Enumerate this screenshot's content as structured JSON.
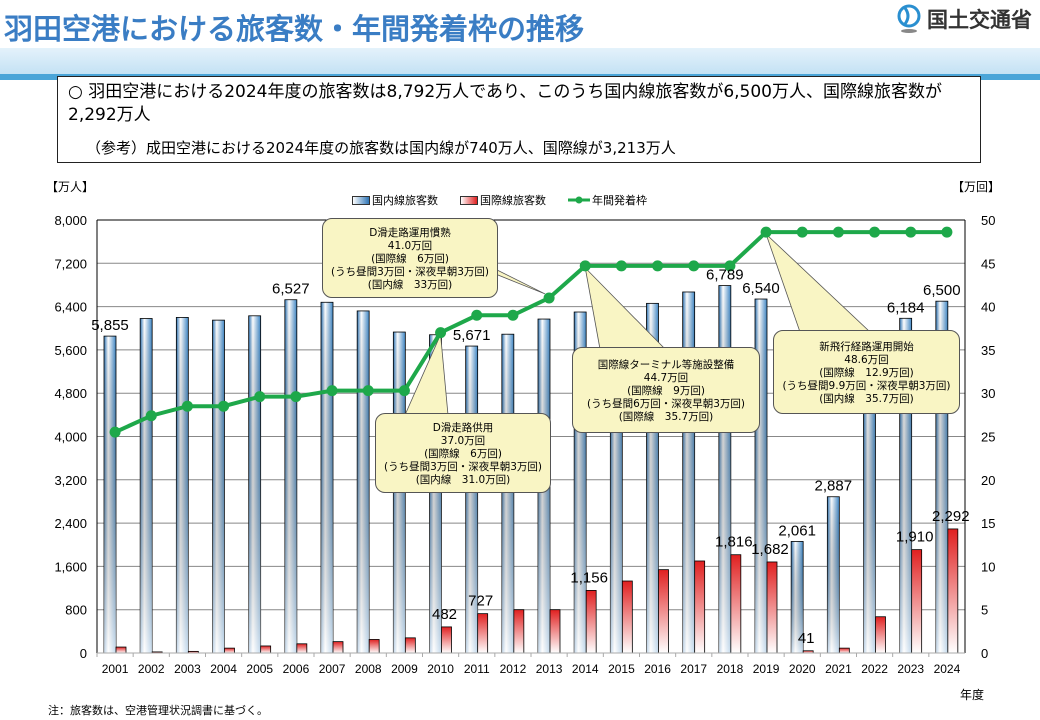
{
  "header": {
    "title": "羽田空港における旅客数・年間発着枠の推移",
    "logo_text": "国土交通省"
  },
  "summary": {
    "line1": "○ 羽田空港における2024年度の旅客数は8,792万人であり、このうち国内線旅客数が6,500万人、国際線旅客数が2,292万人",
    "line2": "（参考）成田空港における2024年度の旅客数は国内線が740万人、国際線が3,213万人"
  },
  "note": "注：旅客数は、空港管理状況調書に基づく。",
  "colors": {
    "title": "#3a7dc4",
    "domestic": "#2e75b6",
    "international": "#e02020",
    "slots": "#1ea84a",
    "callout": "#f9f5c4"
  },
  "chart_data": {
    "type": "bar+line",
    "y_left_unit": "【万人】",
    "y_right_unit": "【万回】",
    "xlabel": "年度",
    "y_left_lim": [
      0,
      8000
    ],
    "y_left_ticks": [
      "0",
      "800",
      "1,600",
      "2,400",
      "3,200",
      "4,000",
      "4,800",
      "5,600",
      "6,400",
      "7,200",
      "8,000"
    ],
    "y_right_lim": [
      0,
      50
    ],
    "y_right_ticks": [
      "0",
      "5",
      "10",
      "15",
      "20",
      "25",
      "30",
      "35",
      "40",
      "45",
      "50"
    ],
    "grid": true,
    "legend_position": "top",
    "categories": [
      "2001",
      "2002",
      "2003",
      "2004",
      "2005",
      "2006",
      "2007",
      "2008",
      "2009",
      "2010",
      "2011",
      "2012",
      "2013",
      "2014",
      "2015",
      "2016",
      "2017",
      "2018",
      "2019",
      "2020",
      "2021",
      "2022",
      "2023",
      "2024"
    ],
    "series": [
      {
        "name": "国内線旅客数",
        "axis": "left",
        "kind": "bar",
        "values": [
          5855,
          6180,
          6200,
          6150,
          6230,
          6527,
          6480,
          6320,
          5930,
          5880,
          5671,
          5890,
          6170,
          6300,
          6280,
          6460,
          6670,
          6789,
          6540,
          2061,
          2887,
          5300,
          6184,
          6500
        ],
        "labeled": [
          "2001",
          "2006",
          "2011",
          "2018",
          "2019",
          "2020",
          "2021",
          "2023",
          "2024"
        ]
      },
      {
        "name": "国際線旅客数",
        "axis": "left",
        "kind": "bar",
        "values": [
          110,
          20,
          30,
          90,
          130,
          170,
          210,
          250,
          280,
          482,
          727,
          800,
          800,
          1156,
          1330,
          1540,
          1700,
          1816,
          1682,
          41,
          90,
          670,
          1910,
          2292
        ],
        "labeled": [
          "2010",
          "2011",
          "2014",
          "2018",
          "2019",
          "2020",
          "2023",
          "2024"
        ]
      },
      {
        "name": "年間発着枠",
        "axis": "right",
        "kind": "line",
        "values": [
          25.5,
          27.4,
          28.5,
          28.5,
          29.6,
          29.6,
          30.3,
          30.3,
          30.3,
          37.0,
          39.0,
          39.0,
          41.0,
          44.7,
          44.7,
          44.7,
          44.7,
          44.7,
          48.6,
          48.6,
          48.6,
          48.6,
          48.6,
          48.6
        ]
      }
    ],
    "annotations": [
      {
        "year": "2013",
        "lines": [
          "D滑走路運用慣熟",
          "41.0万回",
          "(国際線　6万回)",
          "(うち昼間3万回・深夜早朝3万回)",
          "(国内線　33万回)"
        ]
      },
      {
        "year": "2010",
        "lines": [
          "D滑走路供用",
          "37.0万回",
          "(国際線　6万回)",
          "(うち昼間3万回・深夜早朝3万回)",
          "(国内線　31.0万回)"
        ]
      },
      {
        "year": "2014",
        "lines": [
          "国際線ターミナル等施設整備",
          "44.7万回",
          "(国際線　9万回)",
          "(うち昼間6万回・深夜早朝3万回)",
          "(国際線　35.7万回)"
        ]
      },
      {
        "year": "2019",
        "lines": [
          "新飛行経路運用開始",
          "48.6万回",
          "(国際線　12.9万回)",
          "(うち昼間9.9万回・深夜早朝3万回)",
          "(国内線　35.7万回)"
        ]
      }
    ]
  }
}
